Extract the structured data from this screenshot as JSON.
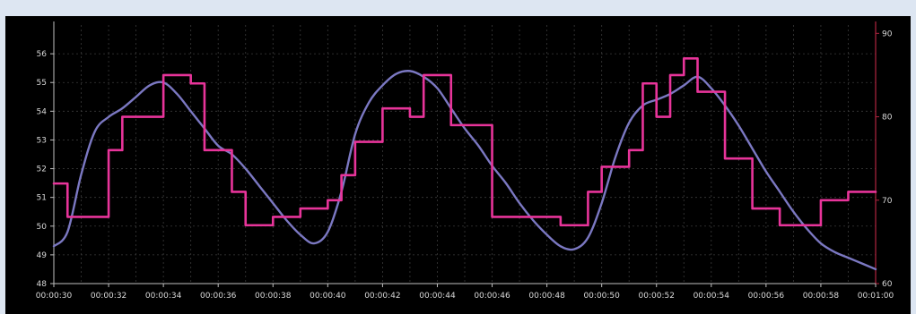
{
  "chart_data": {
    "type": "line",
    "title": "",
    "xlabel": "",
    "ylabel": "",
    "x_tick_labels": [
      "00:00:30",
      "00:00:32",
      "00:00:34",
      "00:00:36",
      "00:00:38",
      "00:00:40",
      "00:00:42",
      "00:00:44",
      "00:00:46",
      "00:00:48",
      "00:00:50",
      "00:00:52",
      "00:00:54",
      "00:00:56",
      "00:00:58",
      "00:01:00"
    ],
    "xlim": [
      30,
      60
    ],
    "y_left": {
      "ylim": [
        48,
        57
      ],
      "ticks": [
        "48",
        "49",
        "50",
        "51",
        "52",
        "53",
        "54",
        "55",
        "56"
      ]
    },
    "y_right": {
      "ylim": [
        60,
        91
      ],
      "ticks": [
        "60",
        "70",
        "80",
        "90"
      ]
    },
    "grid": true,
    "legend": "none",
    "series": [
      {
        "axis": "left",
        "color": "#7b78c2",
        "style": "smooth",
        "points": [
          [
            30.0,
            49.3
          ],
          [
            30.5,
            49.8
          ],
          [
            31.0,
            51.8
          ],
          [
            31.5,
            53.3
          ],
          [
            32.0,
            53.8
          ],
          [
            32.5,
            54.1
          ],
          [
            33.0,
            54.5
          ],
          [
            33.5,
            54.9
          ],
          [
            34.0,
            55.0
          ],
          [
            34.5,
            54.6
          ],
          [
            35.0,
            54.0
          ],
          [
            35.5,
            53.4
          ],
          [
            36.0,
            52.8
          ],
          [
            36.5,
            52.5
          ],
          [
            37.0,
            52.0
          ],
          [
            37.5,
            51.4
          ],
          [
            38.0,
            50.8
          ],
          [
            38.5,
            50.2
          ],
          [
            39.0,
            49.7
          ],
          [
            39.5,
            49.4
          ],
          [
            40.0,
            49.8
          ],
          [
            40.5,
            51.2
          ],
          [
            41.0,
            53.2
          ],
          [
            41.5,
            54.3
          ],
          [
            42.0,
            54.9
          ],
          [
            42.5,
            55.3
          ],
          [
            43.0,
            55.4
          ],
          [
            43.5,
            55.2
          ],
          [
            44.0,
            54.8
          ],
          [
            44.5,
            54.1
          ],
          [
            45.0,
            53.4
          ],
          [
            45.5,
            52.8
          ],
          [
            46.0,
            52.1
          ],
          [
            46.5,
            51.5
          ],
          [
            47.0,
            50.8
          ],
          [
            47.5,
            50.2
          ],
          [
            48.0,
            49.7
          ],
          [
            48.5,
            49.3
          ],
          [
            49.0,
            49.2
          ],
          [
            49.5,
            49.6
          ],
          [
            50.0,
            50.8
          ],
          [
            50.5,
            52.4
          ],
          [
            51.0,
            53.6
          ],
          [
            51.5,
            54.2
          ],
          [
            52.0,
            54.4
          ],
          [
            52.5,
            54.6
          ],
          [
            53.0,
            54.9
          ],
          [
            53.5,
            55.2
          ],
          [
            54.0,
            54.8
          ],
          [
            54.5,
            54.2
          ],
          [
            55.0,
            53.5
          ],
          [
            55.5,
            52.7
          ],
          [
            56.0,
            51.9
          ],
          [
            56.5,
            51.2
          ],
          [
            57.0,
            50.5
          ],
          [
            57.5,
            49.9
          ],
          [
            58.0,
            49.4
          ],
          [
            58.5,
            49.1
          ],
          [
            59.0,
            48.9
          ],
          [
            59.5,
            48.7
          ],
          [
            60.0,
            48.5
          ]
        ]
      },
      {
        "axis": "right",
        "color": "#e8349a",
        "style": "step",
        "points": [
          [
            30.0,
            72
          ],
          [
            30.5,
            68
          ],
          [
            32.0,
            76
          ],
          [
            32.5,
            80
          ],
          [
            34.0,
            85
          ],
          [
            35.0,
            84
          ],
          [
            35.5,
            76
          ],
          [
            36.5,
            71
          ],
          [
            37.0,
            67
          ],
          [
            38.0,
            68
          ],
          [
            39.0,
            69
          ],
          [
            40.0,
            70
          ],
          [
            40.5,
            73
          ],
          [
            41.0,
            77
          ],
          [
            42.0,
            81
          ],
          [
            43.0,
            80
          ],
          [
            43.5,
            85
          ],
          [
            44.5,
            79
          ],
          [
            46.0,
            68
          ],
          [
            47.0,
            68
          ],
          [
            48.5,
            67
          ],
          [
            49.0,
            67
          ],
          [
            49.5,
            71
          ],
          [
            50.0,
            74
          ],
          [
            51.0,
            76
          ],
          [
            51.5,
            84
          ],
          [
            52.0,
            80
          ],
          [
            52.5,
            85
          ],
          [
            53.0,
            87
          ],
          [
            53.5,
            83
          ],
          [
            54.5,
            75
          ],
          [
            55.5,
            69
          ],
          [
            56.5,
            67
          ],
          [
            58.0,
            70
          ],
          [
            59.0,
            71
          ],
          [
            60.0,
            71
          ]
        ]
      }
    ]
  }
}
